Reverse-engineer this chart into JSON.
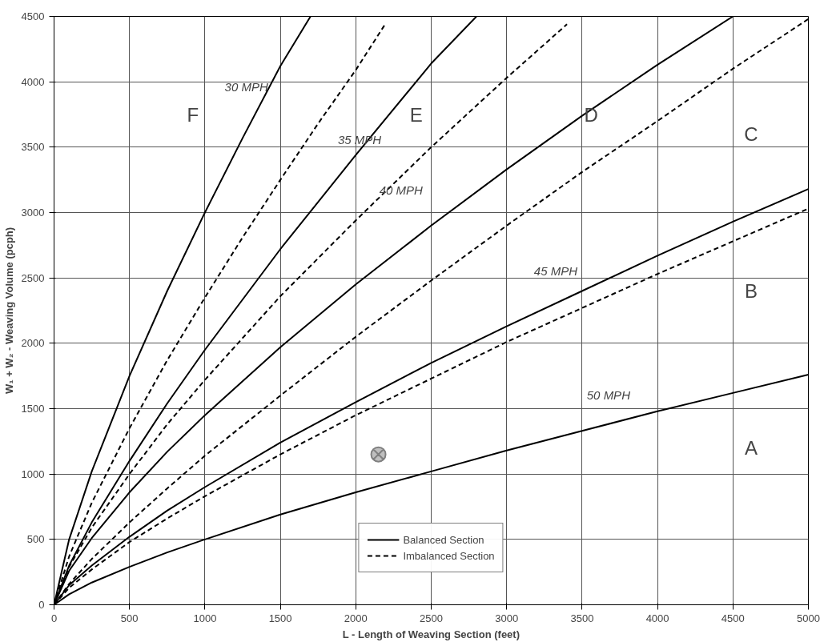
{
  "chart_data": {
    "type": "line",
    "xlabel": "L - Length of Weaving Section (feet)",
    "ylabel": "W₁ + W₂ - Weaving Volume (pcph)",
    "xlim": [
      0,
      5000
    ],
    "ylim": [
      0,
      4500
    ],
    "xticks": [
      0,
      500,
      1000,
      1500,
      2000,
      2500,
      3000,
      3500,
      4000,
      4500,
      5000
    ],
    "yticks": [
      0,
      500,
      1000,
      1500,
      2000,
      2500,
      3000,
      3500,
      4000,
      4500
    ],
    "grid": true,
    "legend": "bottom",
    "series": [
      {
        "name": "Balanced Section",
        "color": "#000000",
        "line_style": "solid",
        "x": [
          0,
          100,
          250,
          500,
          750,
          1000,
          1250,
          1500,
          1700
        ],
        "values": [
          0,
          500,
          1020,
          1750,
          2400,
          3000,
          3570,
          4120,
          4500
        ]
      },
      {
        "name": "Imbalanced Section",
        "color": "#000000",
        "line_style": "dashed",
        "x": [
          0,
          100,
          250,
          500,
          750,
          1000,
          1250,
          1500,
          1750,
          2000,
          2200
        ],
        "values": [
          0,
          370,
          780,
          1350,
          1870,
          2350,
          2810,
          3250,
          3680,
          4090,
          4450
        ]
      },
      {
        "color": "#000000",
        "line_style": "solid",
        "x": [
          0,
          100,
          250,
          500,
          750,
          1000,
          1500,
          2000,
          2500,
          2800
        ],
        "values": [
          0,
          300,
          630,
          1100,
          1540,
          1950,
          2720,
          3440,
          4140,
          4500
        ]
      },
      {
        "color": "#000000",
        "line_style": "dashed",
        "x": [
          0,
          100,
          250,
          500,
          750,
          1000,
          1500,
          2000,
          2500,
          3000,
          3400
        ],
        "values": [
          0,
          290,
          590,
          1000,
          1380,
          1720,
          2360,
          2940,
          3500,
          4030,
          4440
        ]
      },
      {
        "color": "#000000",
        "line_style": "solid",
        "x": [
          0,
          100,
          250,
          500,
          750,
          1000,
          1500,
          2000,
          2500,
          3000,
          3500,
          4000,
          4500
        ],
        "values": [
          0,
          260,
          510,
          860,
          1170,
          1450,
          1970,
          2450,
          2900,
          3330,
          3740,
          4130,
          4500
        ]
      },
      {
        "color": "#000000",
        "line_style": "dashed",
        "x": [
          0,
          100,
          250,
          500,
          750,
          1000,
          1500,
          2000,
          2500,
          3000,
          3500,
          4000,
          4500,
          5000
        ],
        "values": [
          0,
          160,
          350,
          630,
          890,
          1140,
          1600,
          2050,
          2480,
          2900,
          3310,
          3700,
          4100,
          4480
        ]
      },
      {
        "color": "#000000",
        "line_style": "solid",
        "x": [
          0,
          100,
          250,
          500,
          750,
          1000,
          1500,
          2000,
          2500,
          3000,
          3500,
          4000,
          4500,
          5000
        ],
        "values": [
          0,
          150,
          300,
          520,
          720,
          900,
          1240,
          1550,
          1850,
          2130,
          2400,
          2670,
          2930,
          3180
        ]
      },
      {
        "color": "#000000",
        "line_style": "dashed",
        "x": [
          0,
          100,
          250,
          500,
          750,
          1000,
          1500,
          2000,
          2500,
          3000,
          3500,
          4000,
          4500,
          5000
        ],
        "values": [
          0,
          130,
          270,
          480,
          660,
          830,
          1150,
          1450,
          1730,
          2010,
          2270,
          2530,
          2780,
          3030
        ]
      },
      {
        "color": "#000000",
        "line_style": "solid",
        "x": [
          0,
          100,
          250,
          500,
          750,
          1000,
          1500,
          2000,
          2500,
          3000,
          3500,
          4000,
          4500,
          5000
        ],
        "values": [
          0,
          80,
          170,
          290,
          400,
          500,
          690,
          860,
          1020,
          1180,
          1330,
          1480,
          1620,
          1760
        ]
      },
      {
        "type": "scatter",
        "marker": "cross",
        "color": "#808080",
        "x": [
          2150
        ],
        "values": [
          1150
        ]
      }
    ],
    "annotations": [
      "F",
      "E",
      "D",
      "C",
      "B",
      "A",
      "30 MPH",
      "35 MPH",
      "40 MPH",
      "45 MPH",
      "50 MPH"
    ]
  }
}
